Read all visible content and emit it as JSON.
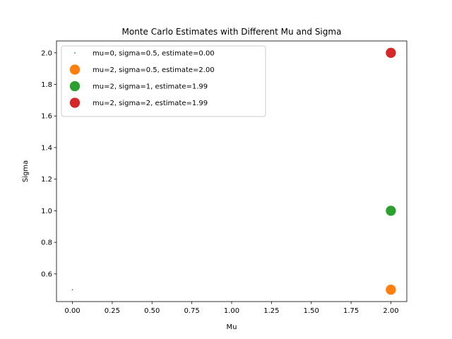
{
  "chart_data": {
    "type": "scatter",
    "title": "Monte Carlo Estimates with Different Mu and Sigma",
    "xlabel": "Mu",
    "ylabel": "Sigma",
    "xlim": [
      -0.1,
      2.1
    ],
    "ylim": [
      0.425,
      2.075
    ],
    "x_ticks": [
      0.0,
      0.25,
      0.5,
      0.75,
      1.0,
      1.25,
      1.5,
      1.75,
      2.0
    ],
    "x_tick_labels": [
      "0.00",
      "0.25",
      "0.50",
      "0.75",
      "1.00",
      "1.25",
      "1.50",
      "1.75",
      "2.00"
    ],
    "y_ticks": [
      0.6,
      0.8,
      1.0,
      1.2,
      1.4,
      1.6,
      1.8,
      2.0
    ],
    "y_tick_labels": [
      "0.6",
      "0.8",
      "1.0",
      "1.2",
      "1.4",
      "1.6",
      "1.8",
      "2.0"
    ],
    "grid": false,
    "legend_position": "top-left",
    "series": [
      {
        "name": "mu=0, sigma=0.5, estimate=0.00",
        "color": "#1f77b4",
        "estimate": 0.0,
        "x": [
          0
        ],
        "y": [
          0.5
        ]
      },
      {
        "name": "mu=2, sigma=0.5, estimate=2.00",
        "color": "#ff7f0e",
        "estimate": 2.0,
        "x": [
          2
        ],
        "y": [
          0.5
        ]
      },
      {
        "name": "mu=2, sigma=1, estimate=1.99",
        "color": "#2ca02c",
        "estimate": 1.99,
        "x": [
          2
        ],
        "y": [
          1
        ]
      },
      {
        "name": "mu=2, sigma=2, estimate=1.99",
        "color": "#d62728",
        "estimate": 1.99,
        "x": [
          2
        ],
        "y": [
          2
        ]
      }
    ]
  }
}
